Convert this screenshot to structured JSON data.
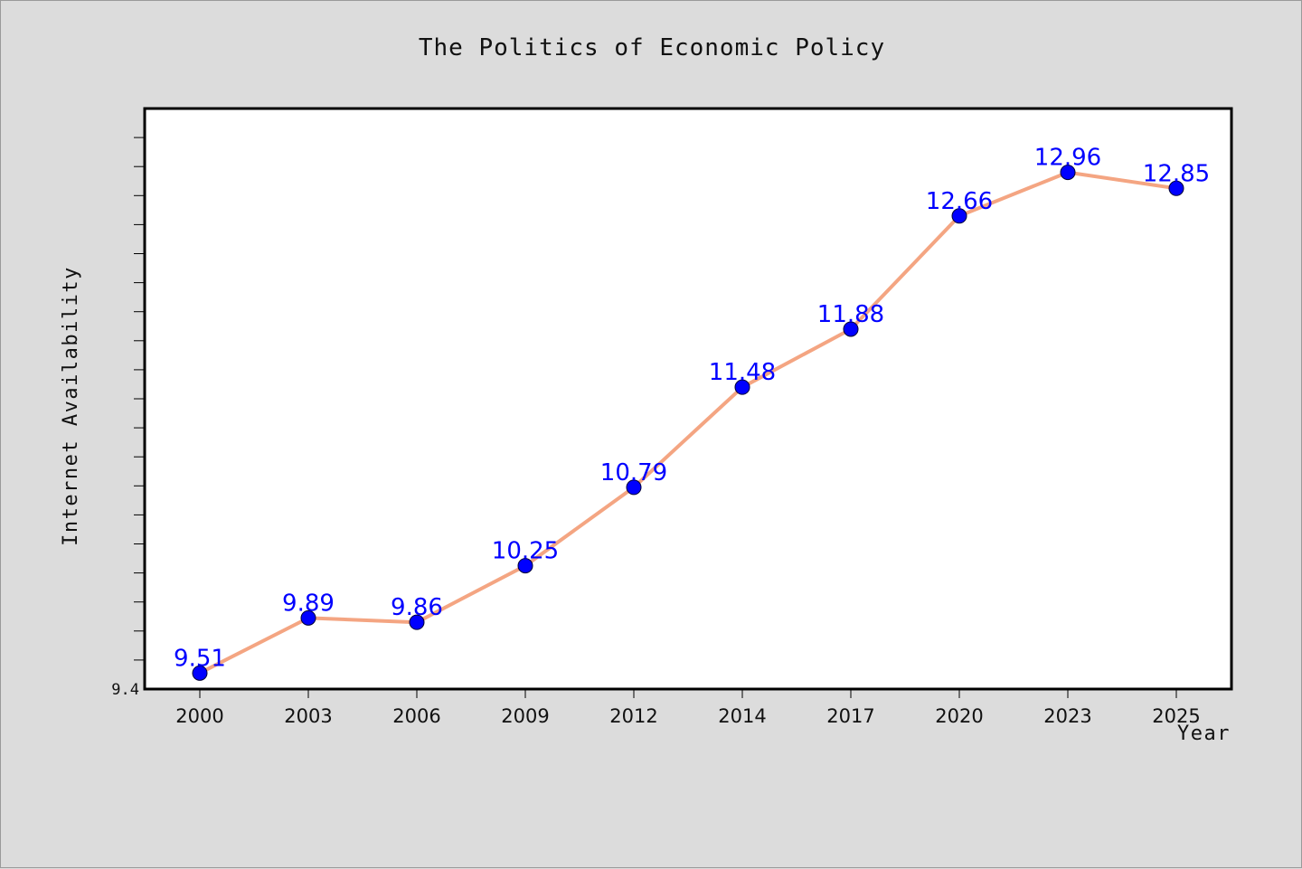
{
  "chart_data": {
    "type": "line",
    "title": "The Politics of Economic Policy",
    "xlabel": "Year",
    "ylabel": "Internet Availability",
    "categories": [
      "2000",
      "2003",
      "2006",
      "2009",
      "2012",
      "2014",
      "2017",
      "2020",
      "2023",
      "2025"
    ],
    "values": [
      9.51,
      9.89,
      9.86,
      10.25,
      10.79,
      11.48,
      11.88,
      12.66,
      12.96,
      12.85
    ],
    "value_labels": [
      "9.51",
      "9.89",
      "9.86",
      "10.25",
      "10.79",
      "11.48",
      "11.88",
      "12.66",
      "12.96",
      "12.85"
    ],
    "ylim": [
      9.4,
      13.4
    ],
    "y_min_label": "9.4",
    "grid": false,
    "legend": "none",
    "line_color": "#f4a582",
    "marker_color": "#0000ff",
    "label_color": "#0000ff",
    "background": "#dcdcdc",
    "plot_background": "#ffffff"
  }
}
